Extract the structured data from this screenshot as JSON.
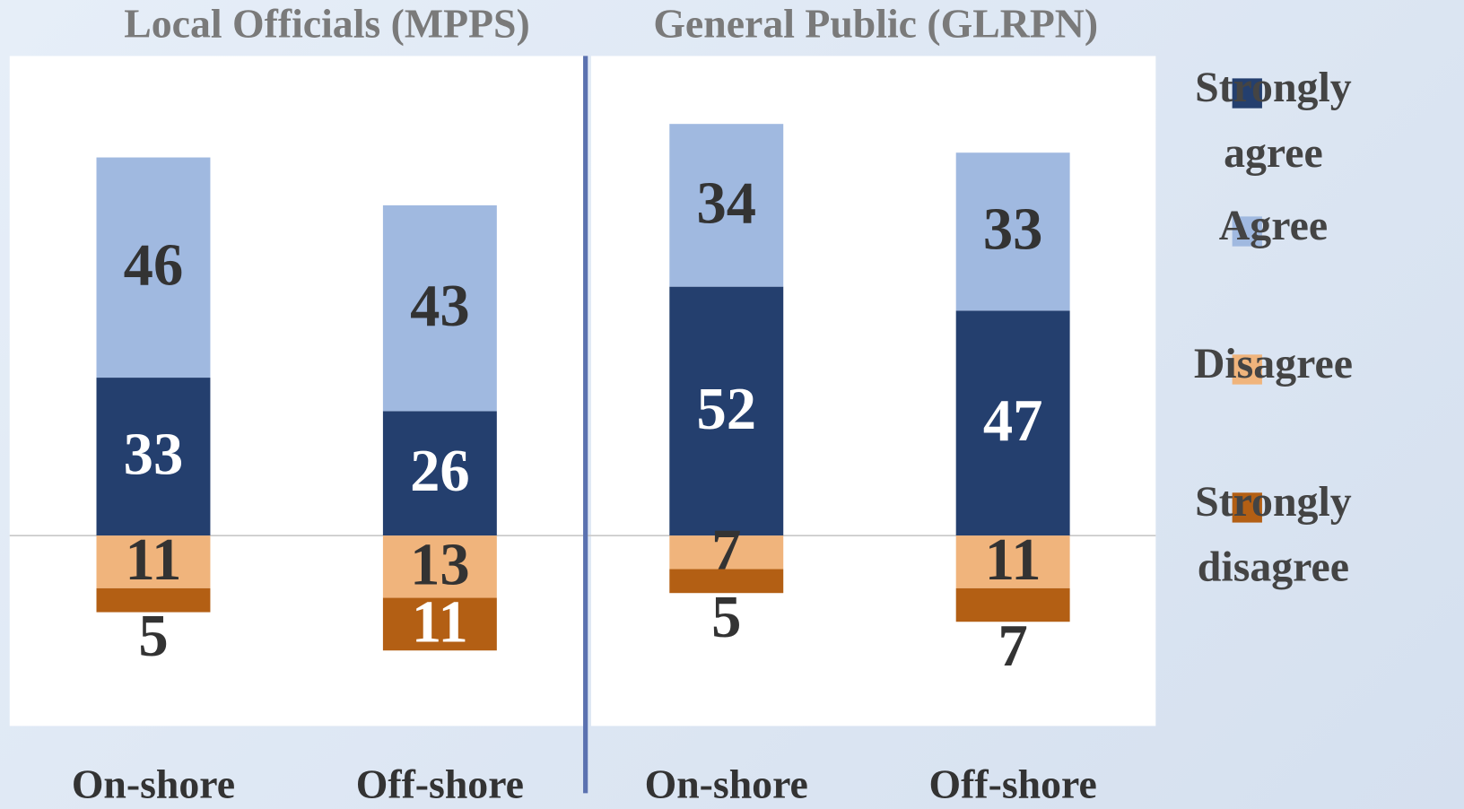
{
  "chart_data": {
    "type": "diverging_bar",
    "group_titles": [
      "Local Officials (MPPS)",
      "General Public (GLRPN)"
    ],
    "categories": [
      "On-shore",
      "Off-shore",
      "On-shore",
      "Off-shore"
    ],
    "series": [
      {
        "name": "Strongly agree",
        "color": "#243f6e",
        "values": [
          33,
          26,
          52,
          47
        ]
      },
      {
        "name": "Agree",
        "color": "#a0b9e0",
        "values": [
          46,
          43,
          34,
          33
        ]
      },
      {
        "name": "Disagree",
        "color": "#f0b47c",
        "values": [
          11,
          13,
          7,
          11
        ]
      },
      {
        "name": "Strongly disagree",
        "color": "#b35f14",
        "values": [
          5,
          11,
          5,
          7
        ]
      }
    ]
  }
}
